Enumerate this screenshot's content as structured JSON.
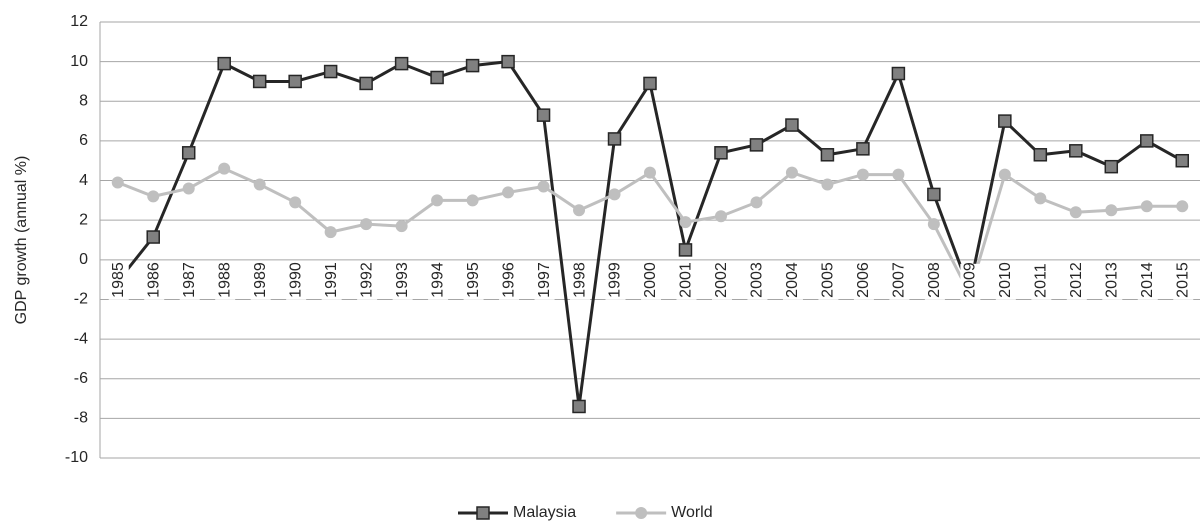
{
  "chart_data": {
    "type": "line",
    "y_label": "GDP growth (annual %)",
    "categories": [
      "1985",
      "1986",
      "1987",
      "1988",
      "1989",
      "1990",
      "1991",
      "1992",
      "1993",
      "1994",
      "1995",
      "1996",
      "1997",
      "1998",
      "1999",
      "2000",
      "2001",
      "2002",
      "2003",
      "2004",
      "2005",
      "2006",
      "2007",
      "2008",
      "2009",
      "2010",
      "2011",
      "2012",
      "2013",
      "2014",
      "2015"
    ],
    "series": [
      {
        "name": "Malaysia",
        "color": "#262626",
        "marker": "square",
        "marker_color": "#808080",
        "values": [
          -1.1,
          1.15,
          5.4,
          9.9,
          9.0,
          9.0,
          9.5,
          8.9,
          9.9,
          9.2,
          9.8,
          10.0,
          7.3,
          -7.4,
          6.1,
          8.9,
          0.5,
          5.4,
          5.8,
          6.8,
          5.3,
          5.6,
          9.4,
          3.3,
          -1.5,
          7.0,
          5.3,
          5.5,
          4.7,
          6.0,
          5.0
        ]
      },
      {
        "name": "World",
        "color": "#bfbfbf",
        "marker": "circle",
        "marker_color": "#bfbfbf",
        "values": [
          3.9,
          3.2,
          3.6,
          4.6,
          3.8,
          2.9,
          1.4,
          1.8,
          1.7,
          3.0,
          3.0,
          3.4,
          3.7,
          2.5,
          3.3,
          4.4,
          1.9,
          2.2,
          2.9,
          4.4,
          3.8,
          4.3,
          4.3,
          1.8,
          -1.7,
          4.3,
          3.1,
          2.4,
          2.5,
          2.7,
          2.7
        ]
      }
    ],
    "ylim": [
      -10,
      12
    ],
    "yticks": [
      -10,
      -8,
      -6,
      -4,
      -2,
      0,
      2,
      4,
      6,
      8,
      10,
      12
    ],
    "grid": true,
    "legend": "bottom"
  }
}
